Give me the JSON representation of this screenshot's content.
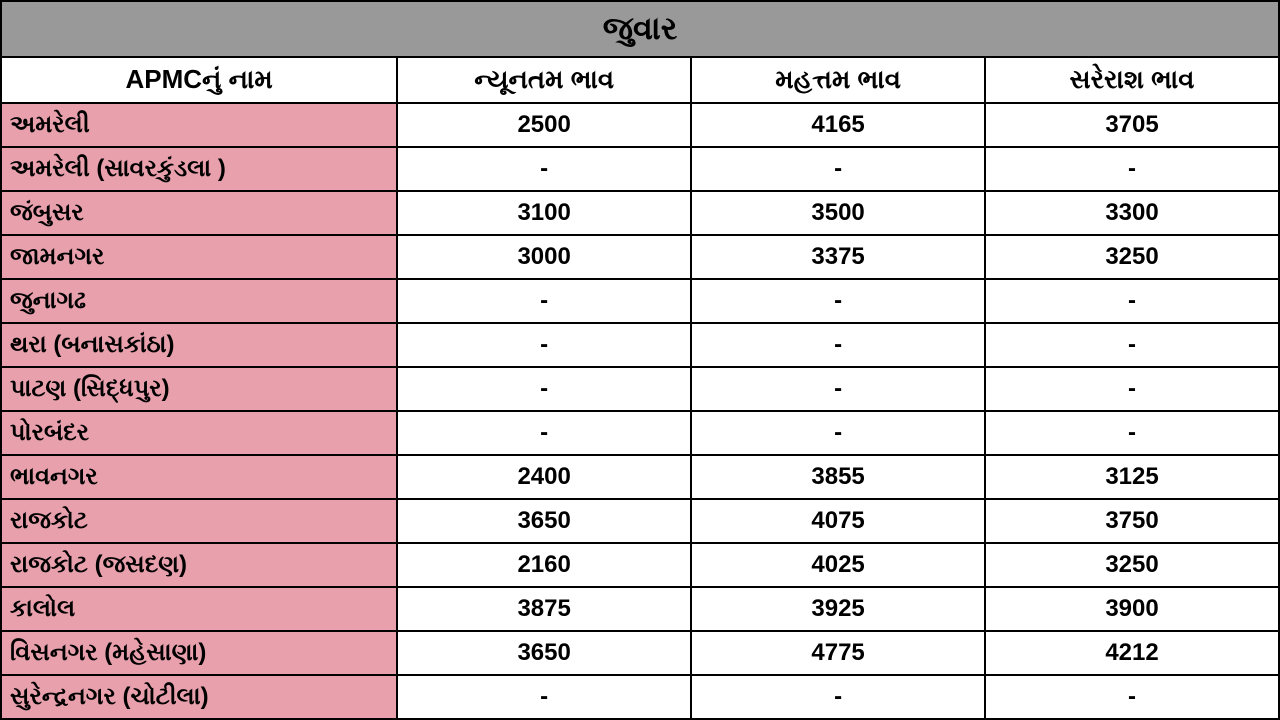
{
  "table": {
    "title": "જુવાર",
    "columns": [
      "APMCનું નામ",
      "ન્યૂનતમ ભાવ",
      "મહત્તમ ભાવ",
      "સરેરાશ ભાવ"
    ],
    "column_widths": [
      "31%",
      "23%",
      "23%",
      "23%"
    ],
    "title_bg_color": "#999999",
    "title_font_size": 32,
    "header_bg_color": "#ffffff",
    "header_font_size": 26,
    "name_cell_bg_color": "#e8a0ad",
    "data_cell_bg_color": "#ffffff",
    "border_color": "#000000",
    "cell_font_size": 24,
    "rows": [
      {
        "name": "અમરેલી",
        "min": "2500",
        "max": "4165",
        "avg": "3705"
      },
      {
        "name": "અમરેલી (સાવરકુંડલા )",
        "min": "-",
        "max": "-",
        "avg": "-"
      },
      {
        "name": "જંબુસર",
        "min": "3100",
        "max": "3500",
        "avg": "3300"
      },
      {
        "name": "જામનગર",
        "min": "3000",
        "max": "3375",
        "avg": "3250"
      },
      {
        "name": "જુનાગઢ",
        "min": "-",
        "max": "-",
        "avg": "-"
      },
      {
        "name": "થરા (બનાસકાંઠા)",
        "min": "-",
        "max": "-",
        "avg": "-"
      },
      {
        "name": "પાટણ (સિદ્ધપુર)",
        "min": "-",
        "max": "-",
        "avg": "-"
      },
      {
        "name": "પોરબંદર",
        "min": "-",
        "max": "-",
        "avg": "-"
      },
      {
        "name": "ભાવનગર",
        "min": "2400",
        "max": "3855",
        "avg": "3125"
      },
      {
        "name": "રાજકોટ",
        "min": "3650",
        "max": "4075",
        "avg": "3750"
      },
      {
        "name": "રાજકોટ  (જસદણ)",
        "min": "2160",
        "max": "4025",
        "avg": "3250"
      },
      {
        "name": "કાલોલ",
        "min": "3875",
        "max": "3925",
        "avg": "3900"
      },
      {
        "name": "વિસનગર (મહેસાણા)",
        "min": "3650",
        "max": "4775",
        "avg": "4212"
      },
      {
        "name": "સુરેન્દ્રનગર (ચોટીલા)",
        "min": "-",
        "max": "-",
        "avg": "-"
      }
    ]
  }
}
